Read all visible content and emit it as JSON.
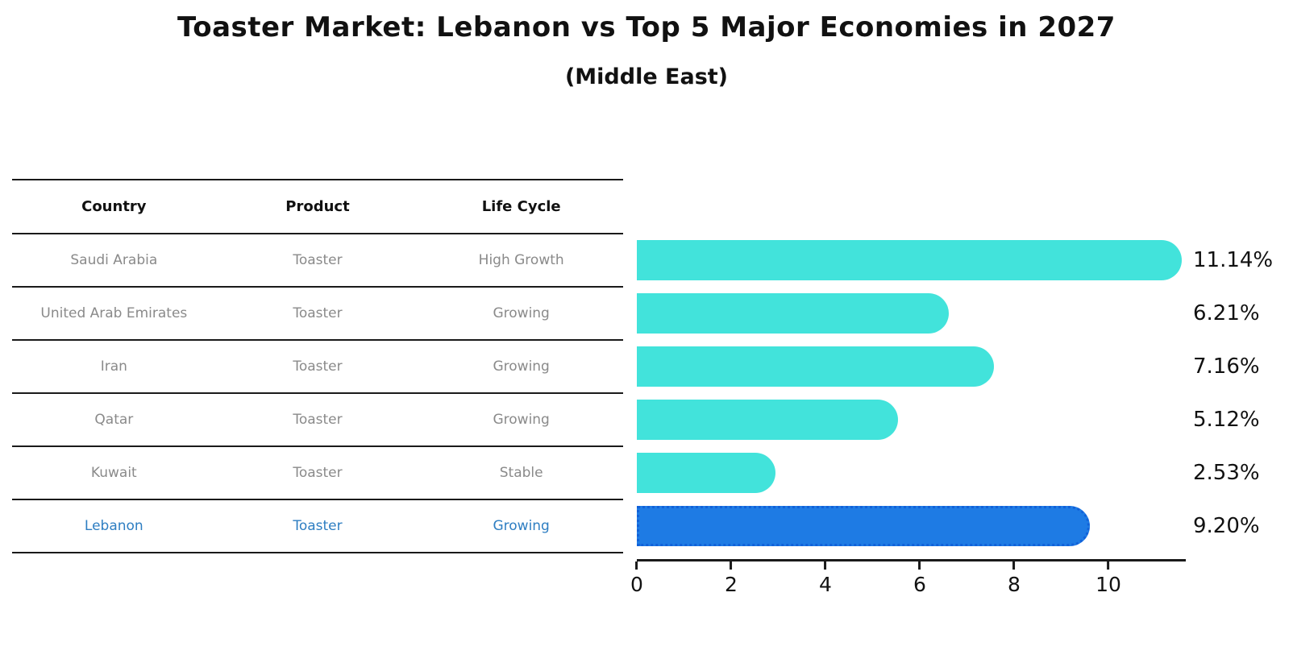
{
  "title": "Toaster Market: Lebanon vs Top 5 Major Economies in 2027",
  "subtitle": "(Middle East)",
  "table": {
    "headers": [
      "Country",
      "Product",
      "Life Cycle"
    ],
    "rows": [
      {
        "country": "Saudi Arabia",
        "product": "Toaster",
        "life_cycle": "High Growth",
        "highlight": false
      },
      {
        "country": "United Arab Emirates",
        "product": "Toaster",
        "life_cycle": "Growing",
        "highlight": false
      },
      {
        "country": "Iran",
        "product": "Toaster",
        "life_cycle": "Growing",
        "highlight": false
      },
      {
        "country": "Qatar",
        "product": "Toaster",
        "life_cycle": "Growing",
        "highlight": false
      },
      {
        "country": "Kuwait",
        "product": "Toaster",
        "life_cycle": "Stable",
        "highlight": false
      },
      {
        "country": "Lebanon",
        "product": "Toaster",
        "life_cycle": "Growing",
        "highlight": true
      }
    ]
  },
  "chart_data": {
    "type": "bar",
    "orientation": "horizontal",
    "title": "Toaster Market: Lebanon vs Top 5 Major Economies in 2027",
    "subtitle": "(Middle East)",
    "categories": [
      "Saudi Arabia",
      "United Arab Emirates",
      "Iran",
      "Qatar",
      "Kuwait",
      "Lebanon"
    ],
    "values": [
      11.14,
      6.21,
      7.16,
      5.12,
      2.53,
      9.2
    ],
    "value_labels": [
      "11.14%",
      "6.21%",
      "7.16%",
      "5.12%",
      "2.53%",
      "9.20%"
    ],
    "xticks": [
      0,
      2,
      4,
      6,
      8,
      10
    ],
    "xlim": [
      0,
      11.6
    ],
    "grid": false,
    "legend": false,
    "highlight_index": 5,
    "bar_color": "#42E3DB",
    "highlight_bar_color": "#1E7BE4",
    "highlight_border_color": "#1161D9"
  },
  "colors": {
    "bar-cyan": "#42E3DB",
    "bar-blue": "#1E7BE4",
    "bar-blue-border": "#1161D9",
    "highlight-text": "#2E7EC2",
    "row-text": "#8A8A8A",
    "header-text": "#111111",
    "label-text": "#111111",
    "line-color": "#1A1A1A"
  }
}
